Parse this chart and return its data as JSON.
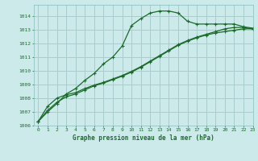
{
  "title": "Graphe pression niveau de la mer (hPa)",
  "background_color": "#cceaea",
  "grid_color": "#aacccc",
  "line_color": "#1a6b2a",
  "xlim": [
    -0.5,
    23
  ],
  "ylim": [
    1006,
    1014.8
  ],
  "xticks": [
    0,
    1,
    2,
    3,
    4,
    5,
    6,
    7,
    8,
    9,
    10,
    11,
    12,
    13,
    14,
    15,
    16,
    17,
    18,
    19,
    20,
    21,
    22,
    23
  ],
  "yticks": [
    1006,
    1007,
    1008,
    1009,
    1010,
    1011,
    1012,
    1013,
    1014
  ],
  "xlabel_fontsize": 5.5,
  "tick_fontsize": 4.5,
  "series": [
    {
      "x": [
        0,
        1,
        2,
        3,
        4,
        5,
        6,
        7,
        8,
        9,
        10,
        11,
        12,
        13,
        14,
        15,
        16,
        17,
        18,
        19,
        20,
        21,
        22,
        23
      ],
      "y": [
        1006.3,
        1007.0,
        1007.6,
        1008.3,
        1008.7,
        1009.3,
        1009.8,
        1010.5,
        1011.0,
        1011.8,
        1013.3,
        1013.8,
        1014.2,
        1014.35,
        1014.35,
        1014.2,
        1013.6,
        1013.4,
        1013.4,
        1013.4,
        1013.4,
        1013.4,
        1013.2,
        1013.1
      ],
      "lw": 0.9
    },
    {
      "x": [
        0,
        1,
        2,
        3,
        4,
        5,
        6,
        7,
        8,
        9,
        10,
        11,
        12,
        13,
        14,
        15,
        16,
        17,
        18,
        19,
        20,
        21,
        22,
        23
      ],
      "y": [
        1006.3,
        1007.4,
        1008.0,
        1008.25,
        1008.4,
        1008.7,
        1008.95,
        1009.15,
        1009.4,
        1009.65,
        1009.95,
        1010.3,
        1010.7,
        1011.1,
        1011.5,
        1011.9,
        1012.2,
        1012.45,
        1012.65,
        1012.85,
        1013.05,
        1013.15,
        1013.15,
        1013.05
      ],
      "lw": 0.9
    },
    {
      "x": [
        0,
        1,
        2,
        3,
        4,
        5,
        6,
        7,
        8,
        9,
        10,
        11,
        12,
        13,
        14,
        15,
        16,
        17,
        18,
        19,
        20,
        21,
        22,
        23
      ],
      "y": [
        1006.3,
        1007.1,
        1007.7,
        1008.1,
        1008.3,
        1008.6,
        1008.9,
        1009.1,
        1009.35,
        1009.6,
        1009.9,
        1010.25,
        1010.65,
        1011.05,
        1011.45,
        1011.85,
        1012.15,
        1012.4,
        1012.6,
        1012.75,
        1012.85,
        1012.95,
        1013.05,
        1013.05
      ],
      "lw": 0.9
    }
  ]
}
